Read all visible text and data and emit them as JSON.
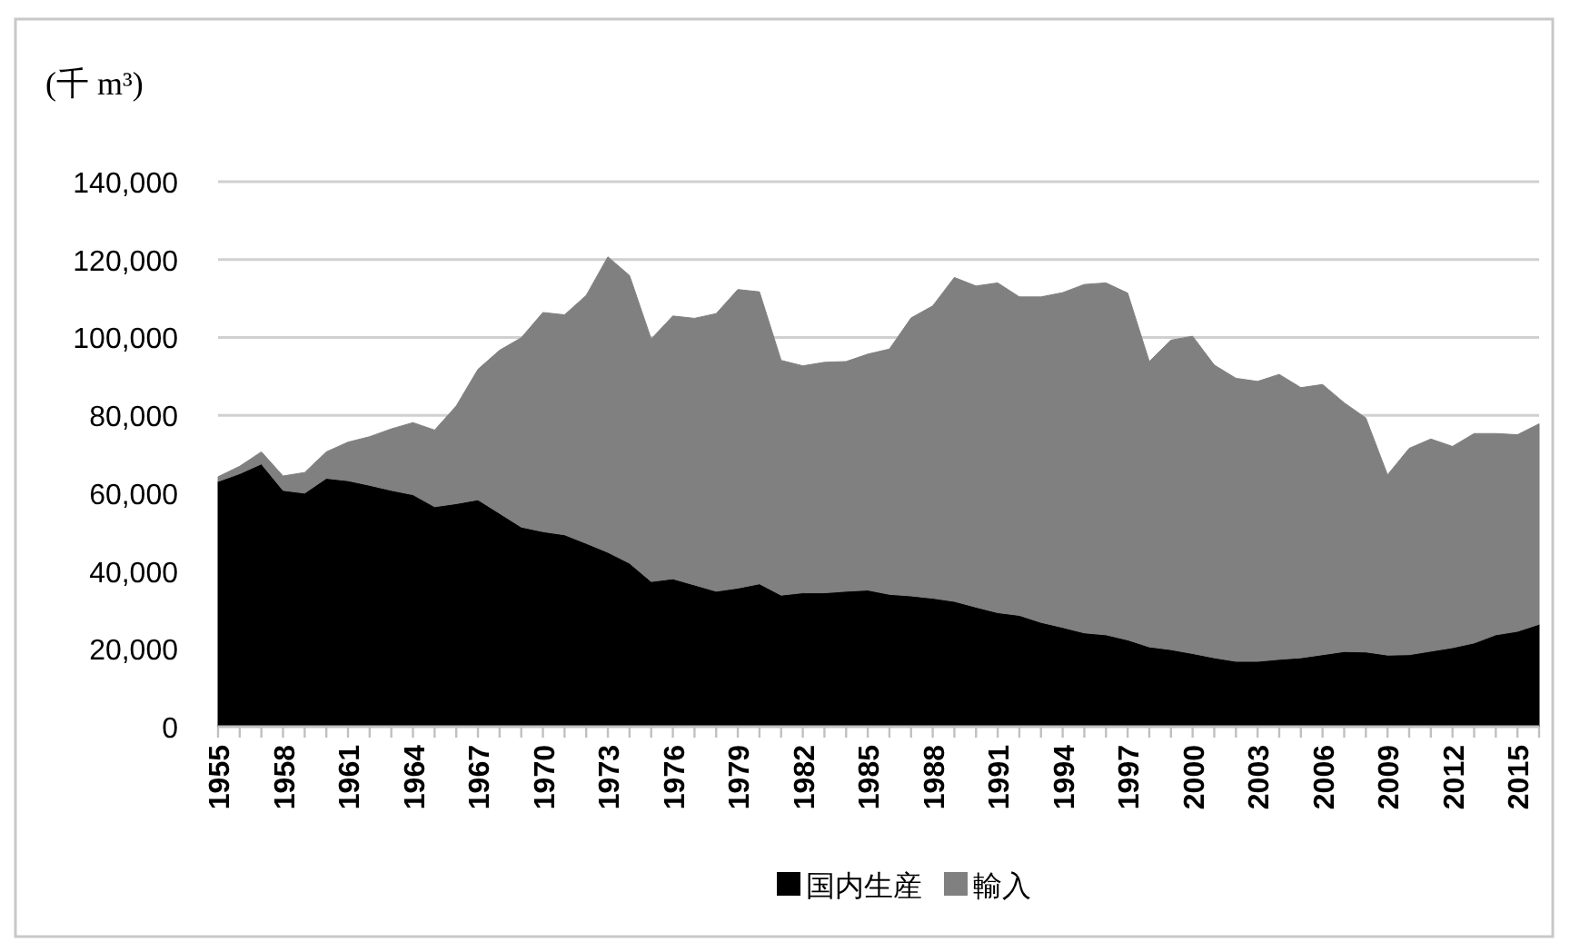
{
  "chart_data": {
    "type": "area",
    "stacked": true,
    "ylabel": "(千 m³)",
    "categories": [
      "1955",
      null,
      null,
      "1958",
      null,
      null,
      "1961",
      null,
      null,
      "1964",
      null,
      null,
      "1967",
      null,
      null,
      "1970",
      null,
      null,
      "1973",
      null,
      null,
      "1976",
      null,
      null,
      "1979",
      null,
      null,
      "1982",
      null,
      null,
      "1985",
      null,
      null,
      "1988",
      null,
      null,
      "1991",
      null,
      null,
      "1994",
      null,
      null,
      "1997",
      null,
      null,
      "2000",
      null,
      null,
      "2003",
      null,
      null,
      "2006",
      null,
      null,
      "2009",
      null,
      null,
      "2012",
      null,
      null,
      "2015",
      null
    ],
    "series": [
      {
        "name": "国内生産",
        "color": "#000000",
        "values": [
          63000,
          65000,
          67500,
          60700,
          60000,
          63800,
          63200,
          62000,
          60700,
          59600,
          56500,
          57300,
          58300,
          54800,
          51300,
          50100,
          49300,
          47100,
          44800,
          42000,
          37300,
          38000,
          36400,
          34800,
          35600,
          36700,
          33800,
          34400,
          34400,
          34800,
          35100,
          34000,
          33600,
          33000,
          32200,
          30700,
          29300,
          28600,
          26800,
          25500,
          24100,
          23600,
          22300,
          20500,
          19800,
          18800,
          17700,
          16800,
          16800,
          17300,
          17700,
          18500,
          19300,
          19200,
          18400,
          18500,
          19400,
          20300,
          21500,
          23600,
          24500,
          26300
        ]
      },
      {
        "name": "輸入",
        "color": "#808080",
        "values": [
          1200,
          1900,
          3100,
          3700,
          5300,
          6800,
          9900,
          12500,
          15800,
          18500,
          19700,
          25100,
          33500,
          41900,
          48600,
          56300,
          56500,
          63700,
          75900,
          73900,
          62300,
          67500,
          68500,
          71300,
          76700,
          75000,
          60300,
          58300,
          59200,
          59000,
          60600,
          63000,
          71400,
          75100,
          83200,
          82500,
          84700,
          81800,
          83600,
          86000,
          89500,
          90400,
          89100,
          73300,
          79500,
          81500,
          75200,
          72700,
          71900,
          73200,
          69400,
          69400,
          63900,
          60100,
          46300,
          53000,
          54500,
          51700,
          53800,
          51700,
          50500,
          51500
        ]
      }
    ],
    "ylim": [
      0,
      140000
    ],
    "yticks": [
      {
        "value": 0,
        "label": "0"
      },
      {
        "value": 20000,
        "label": "20,000"
      },
      {
        "value": 40000,
        "label": "40,000"
      },
      {
        "value": 60000,
        "label": "60,000"
      },
      {
        "value": 80000,
        "label": "80,000"
      },
      {
        "value": 100000,
        "label": "100,000"
      },
      {
        "value": 120000,
        "label": "120,000"
      },
      {
        "value": 140000,
        "label": "140,000"
      }
    ],
    "grid": "y",
    "legend": "bottom"
  }
}
